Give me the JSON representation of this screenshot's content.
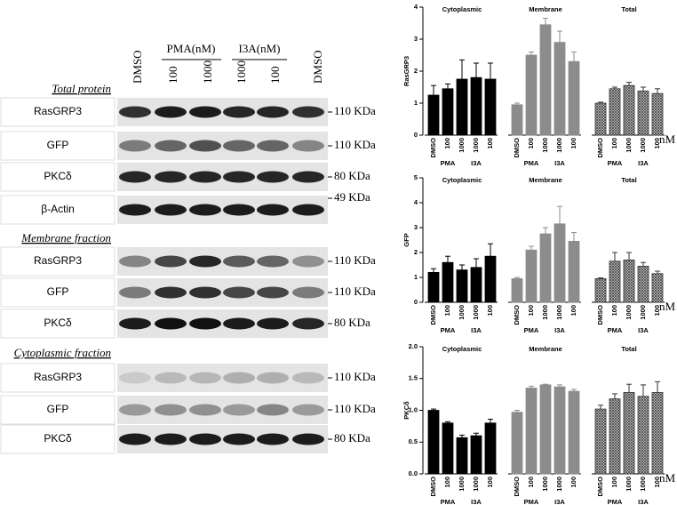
{
  "blot": {
    "column_headers": [
      "DMSO",
      "PMA(nM)",
      "I3A(nM)",
      "DMSO"
    ],
    "lane_labels": [
      "100",
      "1000",
      "1000",
      "100"
    ],
    "sections": [
      {
        "title": "Total protein",
        "rows": [
          {
            "label": "RasGRP3",
            "size": "110 KDa"
          },
          {
            "label": "GFP",
            "size": "110 KDa"
          },
          {
            "label": "PKCδ",
            "size": "80 KDa"
          },
          {
            "label": "β-Actin",
            "size": "49 KDa"
          }
        ]
      },
      {
        "title": "Membrane fraction",
        "rows": [
          {
            "label": "RasGRP3",
            "size": "110 KDa"
          },
          {
            "label": "GFP",
            "size": "110 KDa"
          },
          {
            "label": "PKCδ",
            "size": "80 KDa"
          }
        ]
      },
      {
        "title": "Cytoplasmic fraction",
        "rows": [
          {
            "label": "RasGRP3",
            "size": "110 KDa"
          },
          {
            "label": "GFP",
            "size": "110 KDa"
          },
          {
            "label": "PKCδ",
            "size": "80 KDa"
          }
        ]
      }
    ]
  },
  "chart_data": [
    {
      "type": "bar",
      "ylabel": "RasGRP3",
      "ylim": [
        0,
        4
      ],
      "yticks": [
        0,
        1,
        2,
        3,
        4
      ],
      "categories": [
        "DMSO",
        "100",
        "1000",
        "1000",
        "100"
      ],
      "subgroups": [
        "PMA",
        "I3A"
      ],
      "unit": "nM",
      "groups": [
        {
          "name": "Cytoplasmic",
          "color": "#000000",
          "hatch": false,
          "values": [
            1.25,
            1.45,
            1.75,
            1.8,
            1.75
          ],
          "errors": [
            0.3,
            0.15,
            0.6,
            0.45,
            0.5
          ]
        },
        {
          "name": "Membrane",
          "color": "#8c8c8c",
          "hatch": false,
          "values": [
            0.95,
            2.5,
            3.45,
            2.9,
            2.3
          ],
          "errors": [
            0.05,
            0.1,
            0.2,
            0.35,
            0.3
          ]
        },
        {
          "name": "Total",
          "color": "#333333",
          "hatch": true,
          "values": [
            1.0,
            1.45,
            1.55,
            1.38,
            1.3
          ],
          "errors": [
            0.03,
            0.05,
            0.1,
            0.12,
            0.15
          ]
        }
      ]
    },
    {
      "type": "bar",
      "ylabel": "GFP",
      "ylim": [
        0,
        5
      ],
      "yticks": [
        0,
        1,
        2,
        3,
        4,
        5
      ],
      "categories": [
        "DMSO",
        "100",
        "1000",
        "1000",
        "100"
      ],
      "subgroups": [
        "PMA",
        "I3A"
      ],
      "unit": "nM",
      "groups": [
        {
          "name": "Cytoplasmic",
          "color": "#000000",
          "hatch": false,
          "values": [
            1.2,
            1.6,
            1.3,
            1.4,
            1.85
          ],
          "errors": [
            0.15,
            0.25,
            0.2,
            0.35,
            0.5
          ]
        },
        {
          "name": "Membrane",
          "color": "#8c8c8c",
          "hatch": false,
          "values": [
            0.95,
            2.1,
            2.75,
            3.15,
            2.45
          ],
          "errors": [
            0.05,
            0.15,
            0.25,
            0.7,
            0.35
          ]
        },
        {
          "name": "Total",
          "color": "#333333",
          "hatch": true,
          "values": [
            0.95,
            1.65,
            1.7,
            1.45,
            1.15
          ],
          "errors": [
            0.03,
            0.35,
            0.3,
            0.15,
            0.1
          ]
        }
      ]
    },
    {
      "type": "bar",
      "ylabel": "PKCδ",
      "ylim": [
        0,
        2
      ],
      "yticks": [
        {
          "value": 0,
          "label": "0.0"
        },
        {
          "value": 0.5,
          "label": "0.5"
        },
        {
          "value": 1,
          "label": "1.0"
        },
        {
          "value": 1.5,
          "label": "1.5"
        },
        {
          "value": 2,
          "label": "2.0"
        }
      ],
      "categories": [
        "DMSO",
        "100",
        "1000",
        "1000",
        "100"
      ],
      "subgroups": [
        "PMA",
        "I3A"
      ],
      "unit": "nM",
      "groups": [
        {
          "name": "Cytoplasmic",
          "color": "#000000",
          "hatch": false,
          "values": [
            1.0,
            0.8,
            0.57,
            0.6,
            0.8
          ],
          "errors": [
            0.02,
            0.02,
            0.04,
            0.04,
            0.06
          ]
        },
        {
          "name": "Membrane",
          "color": "#8c8c8c",
          "hatch": false,
          "values": [
            0.97,
            1.35,
            1.4,
            1.37,
            1.3
          ],
          "errors": [
            0.03,
            0.03,
            0.01,
            0.03,
            0.03
          ]
        },
        {
          "name": "Total",
          "color": "#333333",
          "hatch": true,
          "values": [
            1.02,
            1.18,
            1.28,
            1.22,
            1.28
          ],
          "errors": [
            0.06,
            0.08,
            0.13,
            0.18,
            0.17
          ]
        }
      ]
    }
  ]
}
